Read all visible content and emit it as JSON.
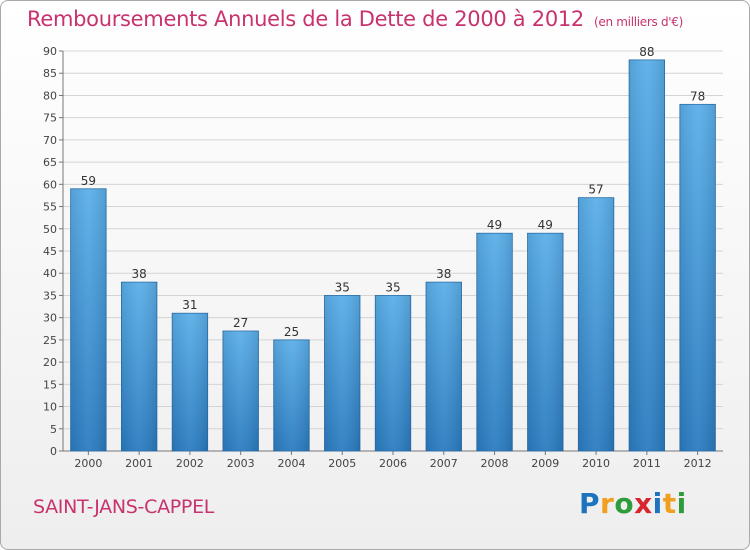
{
  "chart_data": {
    "type": "bar",
    "title": "Remboursements Annuels de la Dette de 2000 à 2012",
    "subtitle": "(en milliers d'€)",
    "categories": [
      "2000",
      "2001",
      "2002",
      "2003",
      "2004",
      "2005",
      "2006",
      "2007",
      "2008",
      "2009",
      "2010",
      "2011",
      "2012"
    ],
    "values": [
      59,
      38,
      31,
      27,
      25,
      35,
      35,
      38,
      49,
      49,
      57,
      88,
      78
    ],
    "xlabel": "",
    "ylabel": "",
    "ylim": [
      0,
      90
    ],
    "yticks": [
      0,
      5,
      10,
      15,
      20,
      25,
      30,
      35,
      40,
      45,
      50,
      55,
      60,
      65,
      70,
      75,
      80,
      85,
      90
    ],
    "grid": true,
    "bar_color_top": "#5aaee8",
    "bar_color_bottom": "#2a7bc0"
  },
  "footer": {
    "commune": "SAINT-JANS-CAPPEL",
    "brand_letters": [
      "P",
      "r",
      "o",
      "x",
      "i",
      "t",
      "i"
    ],
    "brand_colors": [
      "#1e73be",
      "#f0a01e",
      "#2e9c3a",
      "#d9262e",
      "#1e73be",
      "#f0a01e",
      "#2e9c3a"
    ]
  }
}
